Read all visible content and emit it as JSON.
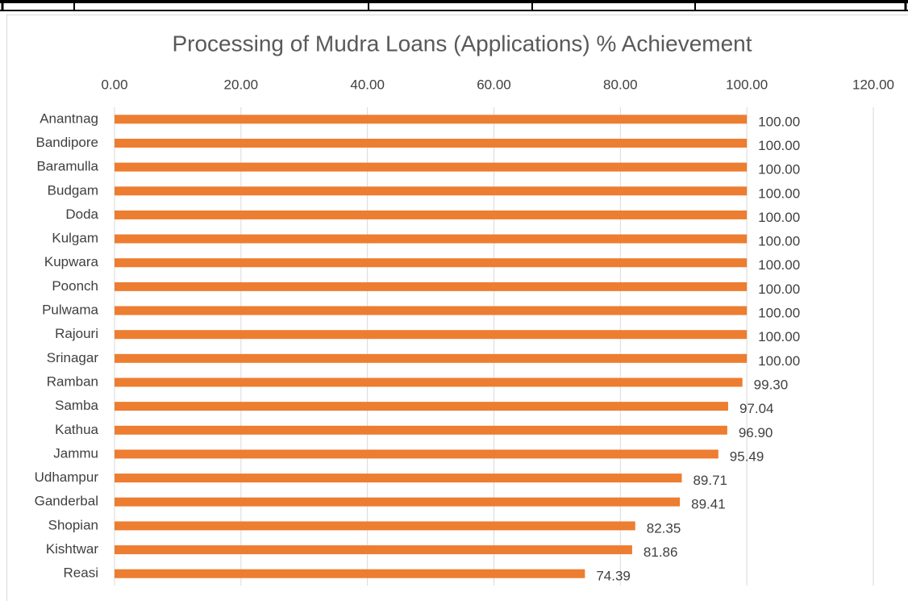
{
  "chart_data": {
    "type": "hbar",
    "title": "Processing of Mudra Loans (Applications)  % Achievement",
    "categories": [
      "Anantnag",
      "Bandipore",
      "Baramulla",
      "Budgam",
      "Doda",
      "Kulgam",
      "Kupwara",
      "Poonch",
      "Pulwama",
      "Rajouri",
      "Srinagar",
      "Ramban",
      "Samba",
      "Kathua",
      "Jammu",
      "Udhampur",
      "Ganderbal",
      "Shopian",
      "Kishtwar",
      "Reasi"
    ],
    "values": [
      100,
      100,
      100,
      100,
      100,
      100,
      100,
      100,
      100,
      100,
      100,
      99.3,
      97.04,
      96.9,
      95.49,
      89.71,
      89.41,
      82.35,
      81.86,
      74.39
    ],
    "value_labels": [
      "100.00",
      "100.00",
      "100.00",
      "100.00",
      "100.00",
      "100.00",
      "100.00",
      "100.00",
      "100.00",
      "100.00",
      "100.00",
      "99.30",
      "97.04",
      "96.90",
      "95.49",
      "89.71",
      "89.41",
      "82.35",
      "81.86",
      "74.39"
    ],
    "color": "#ed7d31",
    "xlim": [
      0,
      120
    ],
    "xticks": [
      {
        "value": 0,
        "label": "0.00"
      },
      {
        "value": 20,
        "label": "20.00"
      },
      {
        "value": 40,
        "label": "40.00"
      },
      {
        "value": 60,
        "label": "60.00"
      },
      {
        "value": 80,
        "label": "80.00"
      },
      {
        "value": 100,
        "label": "100.00"
      },
      {
        "value": 120,
        "label": "120.00"
      }
    ],
    "grid": true
  }
}
